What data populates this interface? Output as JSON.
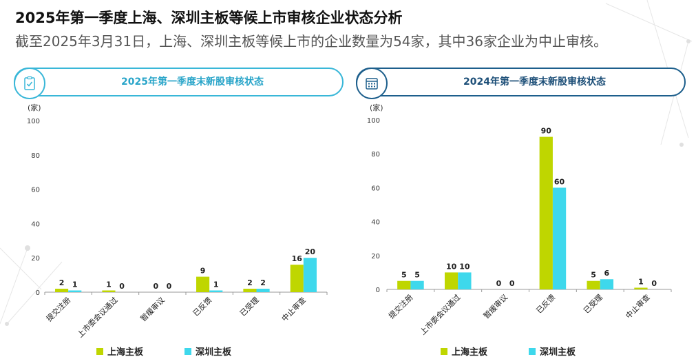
{
  "header": {
    "title": "2025年第一季度上海、深圳主板等候上市审核企业状态分析",
    "subtitle": "截至2025年3月31日，上海、深圳主板等候上市的企业数量为54家，其中36家企业为中止审核。"
  },
  "panels": {
    "left": {
      "title": "2025年第一季度末新股审核状态",
      "icon": "clipboard-check-icon"
    },
    "right": {
      "title": "2024年第一季度末新股审核状态",
      "icon": "calendar-icon"
    }
  },
  "colors": {
    "shanghai": "#bfd600",
    "shenzhen": "#3ed8ec",
    "left_accent": "#39b7d8",
    "right_accent": "#1d5f8c"
  },
  "chart_data": [
    {
      "type": "bar",
      "title": "2025年第一季度末新股审核状态",
      "ylabel": "(家)",
      "ylim": [
        0,
        100
      ],
      "yticks": [
        0,
        20,
        40,
        60,
        80,
        100
      ],
      "grid": false,
      "legend": "bottom",
      "categories": [
        "提交注册",
        "上市委会议通过",
        "暂缓审议",
        "已反馈",
        "已受理",
        "中止审查"
      ],
      "series": [
        {
          "name": "上海主板",
          "values": [
            2,
            1,
            0,
            9,
            2,
            16
          ]
        },
        {
          "name": "深圳主板",
          "values": [
            1,
            0,
            0,
            1,
            2,
            20
          ]
        }
      ]
    },
    {
      "type": "bar",
      "title": "2024年第一季度末新股审核状态",
      "ylabel": "(家)",
      "ylim": [
        0,
        100
      ],
      "yticks": [
        0,
        20,
        40,
        60,
        80,
        100
      ],
      "grid": false,
      "legend": "bottom",
      "categories": [
        "提交注册",
        "上市委会议通过",
        "暂缓审议",
        "已反馈",
        "已受理",
        "中止审查"
      ],
      "series": [
        {
          "name": "上海主板",
          "values": [
            5,
            10,
            0,
            90,
            5,
            1
          ]
        },
        {
          "name": "深圳主板",
          "values": [
            5,
            10,
            0,
            60,
            6,
            0
          ]
        }
      ]
    }
  ]
}
